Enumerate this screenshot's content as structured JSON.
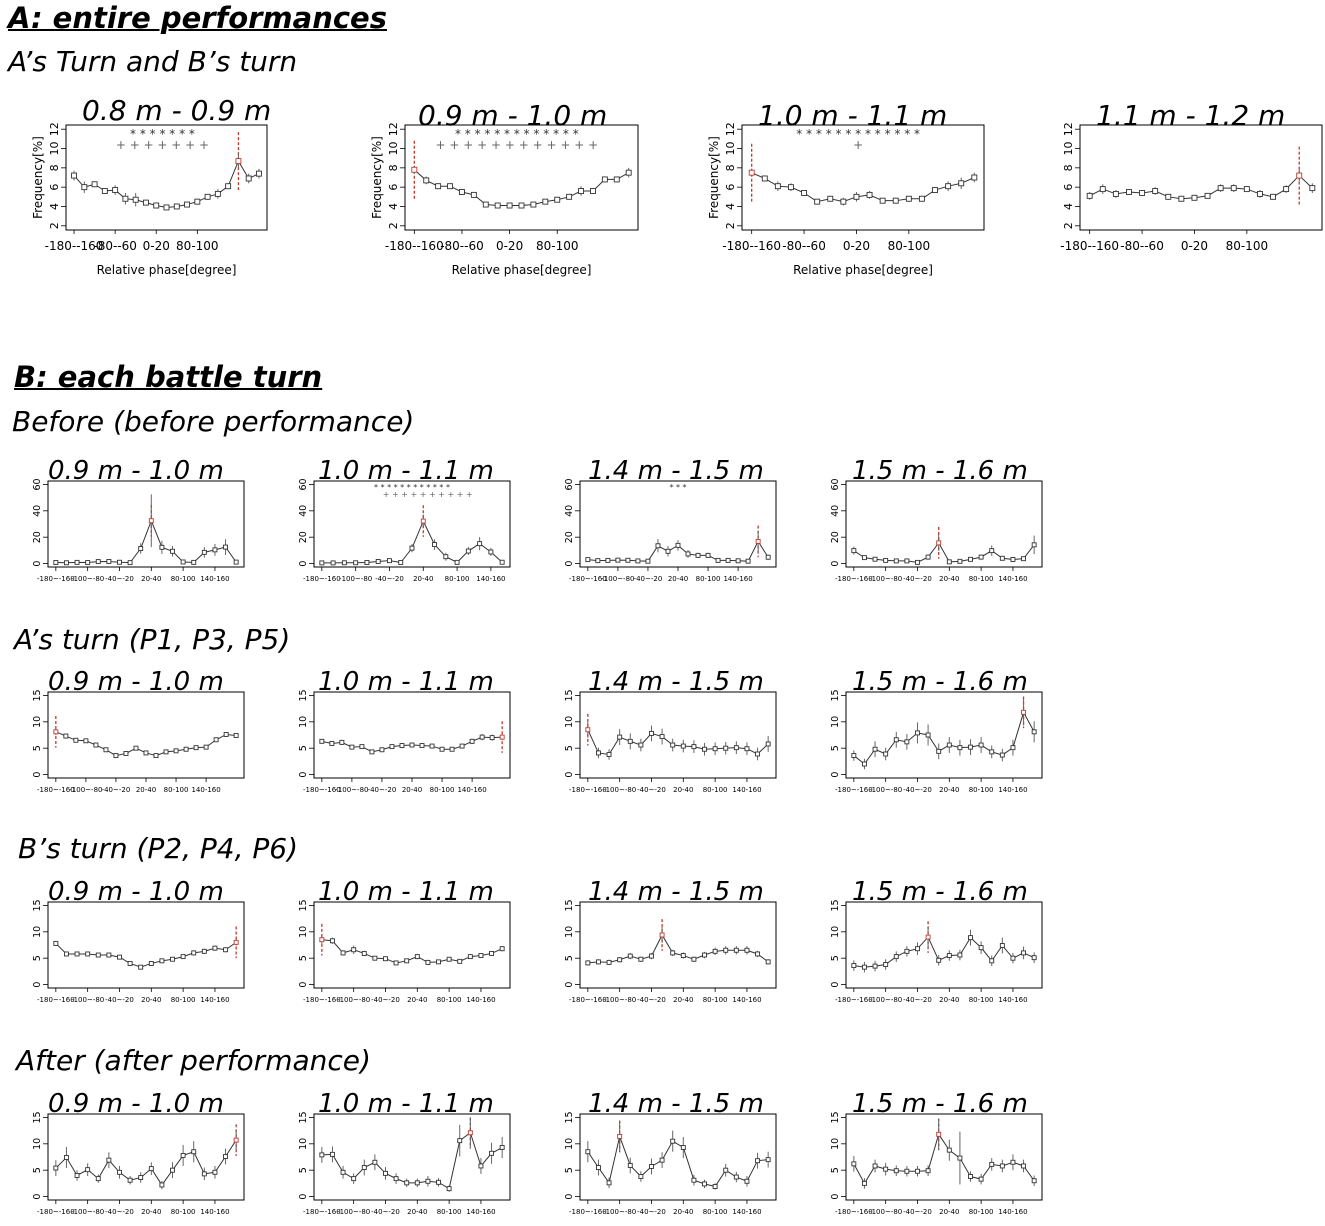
{
  "sections": {
    "a_title": "A: entire performances",
    "a_subtitle": "A’s Turn and B’s turn",
    "b_title": "B: each battle turn",
    "row_before": "Before (before performance)",
    "row_a_turn": "A’s turn (P1, P3, P5)",
    "row_b_turn": "B’s turn (P2, P4, P6)",
    "row_after": "After (after performance)"
  },
  "chart_data": [
    {
      "id": "A1",
      "type": "line",
      "title": "0.8 m - 0.9 m",
      "xlabel": "Relative phase[degree]",
      "ylabel": "Frequency[%]",
      "ylim": [
        2,
        12
      ],
      "yticks": [
        "2",
        "4",
        "6",
        "8",
        "10",
        "12"
      ],
      "xticks": [
        "-180--160",
        "-80--60",
        "0-20",
        "80-100"
      ],
      "values": [
        7.2,
        6.0,
        6.3,
        5.6,
        5.7,
        4.8,
        4.7,
        4.4,
        4.1,
        3.9,
        4.0,
        4.2,
        4.5,
        5.0,
        5.3,
        6.1,
        8.7,
        6.9,
        7.4
      ],
      "errors": [
        0.5,
        0.6,
        0.3,
        0.3,
        0.5,
        0.6,
        0.7,
        0.3,
        0.3,
        0.2,
        0.2,
        0.2,
        0.3,
        0.3,
        0.5,
        0.2,
        0.8,
        0.5,
        0.5
      ],
      "peak_index": 16,
      "star_row": "*  *  *  *  *  *  *",
      "plus_row": "+  +  +  +  +  +  +"
    },
    {
      "id": "A2",
      "type": "line",
      "title": "0.9 m - 1.0 m",
      "xlabel": "Relative phase[degree]",
      "ylabel": "Frequency[%]",
      "ylim": [
        2,
        12
      ],
      "yticks": [
        "2",
        "4",
        "6",
        "8",
        "10",
        "12"
      ],
      "xticks": [
        "-180--160",
        "-80--60",
        "0-20",
        "80-100"
      ],
      "values": [
        7.8,
        6.7,
        6.1,
        6.1,
        5.5,
        5.2,
        4.2,
        4.1,
        4.1,
        4.1,
        4.2,
        4.5,
        4.7,
        5.0,
        5.6,
        5.6,
        6.8,
        6.8,
        7.5
      ],
      "errors": [
        0.4,
        0.4,
        0.3,
        0.3,
        0.3,
        0.3,
        0.2,
        0.2,
        0.2,
        0.2,
        0.2,
        0.2,
        0.2,
        0.3,
        0.5,
        0.3,
        0.3,
        0.3,
        0.5
      ],
      "peak_index": 0,
      "star_row": "*  *  *  *  *  *  *  *  *  *  *       *       *",
      "plus_row": "+  +  +  +  +  +  +  +  +  +  +       +"
    },
    {
      "id": "A3",
      "type": "line",
      "title": "1.0 m - 1.1 m",
      "xlabel": "Relative phase[degree]",
      "ylabel": "Frequency[%]",
      "ylim": [
        2,
        12
      ],
      "yticks": [
        "2",
        "4",
        "6",
        "8",
        "10",
        "12"
      ],
      "xticks": [
        "-180--160",
        "-80--60",
        "0-20",
        "80-100"
      ],
      "values": [
        7.5,
        6.9,
        6.1,
        6.0,
        5.4,
        4.5,
        4.8,
        4.5,
        5.0,
        5.2,
        4.6,
        4.6,
        4.8,
        4.8,
        5.7,
        6.1,
        6.4,
        7.0
      ],
      "errors": [
        0.4,
        0.3,
        0.5,
        0.4,
        0.3,
        0.2,
        0.3,
        0.4,
        0.5,
        0.4,
        0.3,
        0.3,
        0.3,
        0.3,
        0.3,
        0.5,
        0.6,
        0.5
      ],
      "peak_index": 0,
      "star_row": "*  *  *  *  *  *  *  *  *  *  *  *  *",
      "plus_row": "+"
    },
    {
      "id": "A4",
      "type": "line",
      "title": "1.1 m - 1.2 m",
      "xlabel": "",
      "ylabel": "",
      "ylim": [
        2,
        12
      ],
      "yticks": [
        "2",
        "4",
        "6",
        "8",
        "10",
        "12"
      ],
      "xticks": [
        "-180--160",
        "-80--60",
        "0-20",
        "80-100"
      ],
      "values": [
        5.1,
        5.8,
        5.3,
        5.5,
        5.4,
        5.6,
        5.0,
        4.8,
        4.9,
        5.1,
        5.9,
        5.9,
        5.8,
        5.3,
        5.0,
        5.8,
        7.2,
        5.9
      ],
      "errors": [
        0.4,
        0.5,
        0.4,
        0.3,
        0.3,
        0.4,
        0.3,
        0.3,
        0.3,
        0.3,
        0.4,
        0.4,
        0.3,
        0.4,
        0.3,
        0.4,
        0.6,
        0.5
      ],
      "peak_index": 16
    },
    {
      "id": "B1",
      "type": "line",
      "title": "0.9 m - 1.0 m",
      "ylim": [
        0,
        60
      ],
      "yticks": [
        "0",
        "20",
        "40",
        "60"
      ],
      "xticks": [
        "-180~-160",
        "-100~-80",
        "-40~-20",
        "20-40",
        "80-100",
        "140-160"
      ],
      "values": [
        0.8,
        0.6,
        0.9,
        0.8,
        1.5,
        1.6,
        1.0,
        0.7,
        11.4,
        32.5,
        12.3,
        9.3,
        1.2,
        0.9,
        8.5,
        10.4,
        12.5,
        1.1
      ],
      "errors": [
        0.5,
        0.5,
        0.5,
        0.5,
        0.7,
        0.7,
        0.6,
        0.5,
        4.0,
        20.0,
        5.0,
        4.0,
        0.6,
        0.6,
        4.0,
        4.5,
        6.0,
        0.7
      ],
      "peak_index": 9
    },
    {
      "id": "B2",
      "type": "line",
      "title": "1.0 m - 1.1 m",
      "ylim": [
        0,
        60
      ],
      "yticks": [
        "0",
        "20",
        "40",
        "60"
      ],
      "xticks": [
        "-180~-160",
        "-100~-80",
        "-40~-20",
        "20-40",
        "80-100",
        "140-160"
      ],
      "values": [
        0.5,
        0.5,
        0.6,
        0.6,
        0.8,
        1.6,
        2.2,
        0.8,
        11.7,
        32.2,
        14.4,
        5.2,
        0.9,
        9.5,
        15.1,
        8.8,
        1.0
      ],
      "errors": [
        0.4,
        0.4,
        0.4,
        0.4,
        0.5,
        0.6,
        0.8,
        0.5,
        3.0,
        5.0,
        4.0,
        3.0,
        0.6,
        3.0,
        5.0,
        3.0,
        0.5
      ],
      "peak_index": 9,
      "star_row": "*  *  *  *  *  *  *  *  *  *  *  *",
      "plus_row": "+  +  +  +  +  +  +  +  +  +"
    },
    {
      "id": "B3",
      "type": "line",
      "title": "1.4 m - 1.5 m",
      "ylim": [
        0,
        60
      ],
      "yticks": [
        "0",
        "20",
        "40",
        "60"
      ],
      "xticks": [
        "-180~-160",
        "-100~-80",
        "-40~-20",
        "20-40",
        "80-100",
        "140-160"
      ],
      "values": [
        3.0,
        2.2,
        2.4,
        2.6,
        2.5,
        2.0,
        1.8,
        13.5,
        9.3,
        13.8,
        7.3,
        6.2,
        6.2,
        2.4,
        2.4,
        2.1,
        1.8,
        16.8,
        4.8
      ],
      "errors": [
        1.0,
        0.8,
        0.8,
        0.8,
        0.8,
        0.8,
        0.8,
        5.0,
        4.0,
        4.0,
        3.0,
        2.0,
        2.0,
        1.0,
        1.0,
        1.0,
        1.0,
        8.0,
        2.0
      ],
      "peak_index": 17,
      "star_row": "*   *        *"
    },
    {
      "id": "B4",
      "type": "line",
      "title": "1.5 m - 1.6 m",
      "ylim": [
        0,
        60
      ],
      "yticks": [
        "0",
        "20",
        "40",
        "60"
      ],
      "xticks": [
        "-180~-160",
        "-100~-80",
        "-40~-20",
        "20-40",
        "80-100",
        "140-160"
      ],
      "values": [
        9.8,
        4.5,
        3.3,
        2.4,
        2.0,
        2.0,
        0.9,
        4.9,
        15.7,
        1.3,
        1.7,
        3.2,
        4.9,
        9.8,
        4.0,
        3.1,
        3.7,
        14.2
      ],
      "errors": [
        3.0,
        1.5,
        1.0,
        1.0,
        1.0,
        1.0,
        0.6,
        2.0,
        6.0,
        0.8,
        0.8,
        1.5,
        2.0,
        4.0,
        1.5,
        1.5,
        1.5,
        7.0
      ],
      "peak_index": 8
    },
    {
      "id": "C1",
      "type": "line",
      "title": "0.9 m - 1.0 m",
      "ylim": [
        0,
        15
      ],
      "yticks": [
        "0",
        "5",
        "10",
        "15"
      ],
      "xticks": [
        "-180~-160",
        "-100~-80",
        "-40~-20",
        "20-40",
        "80-100",
        "140-160"
      ],
      "values": [
        8.1,
        7.3,
        6.5,
        6.4,
        5.6,
        4.7,
        3.6,
        4.0,
        5.0,
        4.1,
        3.6,
        4.3,
        4.5,
        4.8,
        5.1,
        5.2,
        6.6,
        7.6,
        7.4
      ],
      "errors": [
        0.6,
        0.5,
        0.4,
        0.4,
        0.3,
        0.3,
        0.3,
        0.3,
        0.3,
        0.3,
        0.3,
        0.3,
        0.3,
        0.3,
        0.3,
        0.3,
        0.4,
        0.4,
        0.4
      ],
      "peak_index": 0
    },
    {
      "id": "C2",
      "type": "line",
      "title": "1.0 m - 1.1 m",
      "ylim": [
        0,
        15
      ],
      "yticks": [
        "0",
        "5",
        "10",
        "15"
      ],
      "xticks": [
        "-180~-160",
        "-100~-80",
        "-40~-20",
        "20-40",
        "80-100",
        "140-160"
      ],
      "values": [
        6.3,
        5.9,
        6.1,
        5.2,
        5.3,
        4.3,
        4.7,
        5.3,
        5.5,
        5.6,
        5.5,
        5.4,
        4.8,
        4.8,
        5.4,
        6.3,
        7.1,
        7.0,
        7.1
      ],
      "errors": [
        0.4,
        0.4,
        0.5,
        0.4,
        0.4,
        0.3,
        0.4,
        0.4,
        0.5,
        0.4,
        0.4,
        0.4,
        0.4,
        0.3,
        0.4,
        0.5,
        0.6,
        0.6,
        0.6
      ],
      "peak_index": 18
    },
    {
      "id": "C3",
      "type": "line",
      "title": "1.4 m - 1.5 m",
      "ylim": [
        0,
        15
      ],
      "yticks": [
        "0",
        "5",
        "10",
        "15"
      ],
      "xticks": [
        "-180~-160",
        "-100~-80",
        "-40~-20",
        "20-40",
        "80-100",
        "140-160"
      ],
      "values": [
        8.5,
        4.1,
        3.8,
        7.1,
        6.3,
        5.6,
        7.8,
        7.2,
        5.6,
        5.4,
        5.3,
        4.8,
        4.9,
        5.0,
        5.1,
        4.9,
        3.9,
        5.8
      ],
      "errors": [
        1.5,
        1.0,
        1.0,
        1.5,
        1.5,
        1.2,
        1.5,
        1.5,
        1.2,
        1.2,
        1.2,
        1.2,
        1.2,
        1.2,
        1.2,
        1.2,
        1.2,
        1.5
      ],
      "peak_index": 0
    },
    {
      "id": "C4",
      "type": "line",
      "title": "1.5 m - 1.6 m",
      "ylim": [
        0,
        15
      ],
      "yticks": [
        "0",
        "5",
        "10",
        "15"
      ],
      "xticks": [
        "-180~-160",
        "-100~-80",
        "-40~-20",
        "20-40",
        "80-100",
        "140-160"
      ],
      "values": [
        3.6,
        2.0,
        4.8,
        3.9,
        6.6,
        6.2,
        7.9,
        7.5,
        4.4,
        5.6,
        5.1,
        5.2,
        5.6,
        4.3,
        3.7,
        5.1,
        11.8,
        8.1
      ],
      "errors": [
        1.0,
        1.0,
        1.5,
        1.2,
        1.5,
        1.5,
        2.0,
        2.0,
        1.5,
        1.5,
        1.5,
        1.5,
        1.5,
        1.2,
        1.2,
        1.5,
        2.5,
        2.0
      ],
      "peak_index": 16
    },
    {
      "id": "D1",
      "type": "line",
      "title": "0.9 m - 1.0 m",
      "ylim": [
        0,
        15
      ],
      "yticks": [
        "0",
        "5",
        "10",
        "15"
      ],
      "xticks": [
        "-180~-160",
        "-100~-80",
        "-40~-20",
        "20-40",
        "80-100",
        "140-160"
      ],
      "values": [
        7.8,
        5.8,
        5.8,
        5.8,
        5.6,
        5.6,
        5.2,
        4.0,
        3.3,
        4.0,
        4.5,
        4.8,
        5.3,
        6.0,
        6.3,
        6.9,
        6.6,
        8.0
      ],
      "errors": [
        0.5,
        0.4,
        0.4,
        0.4,
        0.4,
        0.4,
        0.4,
        0.3,
        0.3,
        0.3,
        0.3,
        0.3,
        0.4,
        0.5,
        0.5,
        0.5,
        0.5,
        0.6
      ],
      "peak_index": 17
    },
    {
      "id": "D2",
      "type": "line",
      "title": "1.0 m - 1.1 m",
      "ylim": [
        0,
        15
      ],
      "yticks": [
        "0",
        "5",
        "10",
        "15"
      ],
      "xticks": [
        "-180~-160",
        "-100~-80",
        "-40~-20",
        "20-40",
        "80-100",
        "140-160"
      ],
      "values": [
        8.5,
        8.3,
        6.0,
        6.6,
        5.9,
        5.0,
        4.9,
        4.1,
        4.5,
        5.3,
        4.2,
        4.3,
        4.8,
        4.4,
        5.3,
        5.5,
        5.9,
        6.8
      ],
      "errors": [
        0.8,
        0.6,
        0.5,
        0.8,
        0.5,
        0.4,
        0.4,
        0.3,
        0.4,
        0.5,
        0.5,
        0.4,
        0.4,
        0.4,
        0.4,
        0.4,
        0.4,
        0.5
      ],
      "peak_index": 0
    },
    {
      "id": "D3",
      "type": "line",
      "title": "1.4 m - 1.5 m",
      "ylim": [
        0,
        15
      ],
      "yticks": [
        "0",
        "5",
        "10",
        "15"
      ],
      "xticks": [
        "-180~-160",
        "-100~-80",
        "-40~-20",
        "20-40",
        "80-100",
        "140-160"
      ],
      "values": [
        4.1,
        4.3,
        4.2,
        4.7,
        5.4,
        4.8,
        5.4,
        9.4,
        6.0,
        5.5,
        4.8,
        5.6,
        6.3,
        6.5,
        6.5,
        6.5,
        5.8,
        4.3
      ],
      "errors": [
        0.5,
        0.5,
        0.5,
        0.5,
        0.6,
        0.5,
        0.6,
        1.5,
        0.6,
        0.6,
        0.5,
        0.6,
        0.7,
        0.8,
        0.8,
        0.8,
        0.6,
        0.5
      ],
      "peak_index": 7
    },
    {
      "id": "D4",
      "type": "line",
      "title": "1.5 m - 1.6 m",
      "ylim": [
        0,
        15
      ],
      "yticks": [
        "0",
        "5",
        "10",
        "15"
      ],
      "xticks": [
        "-180~-160",
        "-100~-80",
        "-40~-20",
        "20-40",
        "80-100",
        "140-160"
      ],
      "values": [
        3.6,
        3.3,
        3.5,
        3.8,
        5.3,
        6.3,
        6.8,
        9.0,
        4.6,
        5.5,
        5.6,
        8.9,
        7.0,
        4.5,
        7.4,
        5.0,
        6.0,
        5.1
      ],
      "errors": [
        1.0,
        1.0,
        1.0,
        1.0,
        1.0,
        1.0,
        1.2,
        2.0,
        1.0,
        1.0,
        1.0,
        1.5,
        1.2,
        1.0,
        1.5,
        1.0,
        1.2,
        1.0
      ],
      "peak_index": 7
    },
    {
      "id": "E1",
      "type": "line",
      "title": "0.9 m - 1.0 m",
      "ylim": [
        0,
        15
      ],
      "yticks": [
        "0",
        "5",
        "10",
        "15"
      ],
      "xticks": [
        "-180~-160",
        "-100~-80",
        "-40~-20",
        "20-40",
        "80-100",
        "140-160"
      ],
      "values": [
        5.4,
        7.4,
        4.0,
        5.1,
        3.4,
        6.9,
        4.6,
        3.1,
        3.6,
        5.3,
        2.2,
        5.0,
        7.8,
        8.5,
        4.3,
        4.6,
        7.6,
        10.7
      ],
      "errors": [
        1.5,
        2.0,
        1.0,
        1.2,
        0.8,
        1.5,
        1.2,
        0.8,
        1.0,
        1.2,
        0.8,
        1.5,
        2.0,
        2.0,
        1.2,
        1.2,
        1.5,
        2.0
      ],
      "peak_index": 17
    },
    {
      "id": "E2",
      "type": "line",
      "title": "1.0 m - 1.1 m",
      "ylim": [
        0,
        15
      ],
      "yticks": [
        "0",
        "5",
        "10",
        "15"
      ],
      "xticks": [
        "-180~-160",
        "-100~-80",
        "-40~-20",
        "20-40",
        "80-100",
        "140-160"
      ],
      "values": [
        7.9,
        8.0,
        4.6,
        3.4,
        5.5,
        6.5,
        4.4,
        3.4,
        2.6,
        2.6,
        2.9,
        2.7,
        1.5,
        10.6,
        12.1,
        5.8,
        8.2,
        9.3
      ],
      "errors": [
        1.5,
        1.5,
        1.2,
        1.0,
        1.5,
        1.5,
        1.2,
        1.0,
        0.8,
        0.8,
        1.0,
        0.8,
        0.6,
        3.0,
        3.0,
        1.5,
        2.0,
        2.0
      ],
      "peak_index": 14
    },
    {
      "id": "E3",
      "type": "line",
      "title": "1.4 m - 1.5 m",
      "ylim": [
        0,
        15
      ],
      "yticks": [
        "0",
        "5",
        "10",
        "15"
      ],
      "xticks": [
        "-180~-160",
        "-100~-80",
        "-40~-20",
        "20-40",
        "80-100",
        "140-160"
      ],
      "values": [
        8.5,
        5.5,
        2.6,
        11.4,
        5.9,
        3.8,
        5.7,
        6.9,
        10.5,
        9.3,
        3.1,
        2.4,
        1.9,
        5.0,
        3.7,
        2.9,
        6.8,
        7.0
      ],
      "errors": [
        2.0,
        1.5,
        1.0,
        3.0,
        1.5,
        1.0,
        1.5,
        1.5,
        2.0,
        2.0,
        1.0,
        0.8,
        0.6,
        1.2,
        1.0,
        1.0,
        1.5,
        1.5
      ],
      "peak_index": 3
    },
    {
      "id": "E4",
      "type": "line",
      "title": "1.5 m - 1.6 m",
      "ylim": [
        0,
        15
      ],
      "yticks": [
        "0",
        "5",
        "10",
        "15"
      ],
      "xticks": [
        "-180~-160",
        "-100~-80",
        "-40~-20",
        "20-40",
        "80-100",
        "140-160"
      ],
      "values": [
        6.2,
        2.5,
        5.8,
        5.2,
        4.9,
        4.8,
        4.8,
        4.9,
        11.8,
        8.8,
        7.3,
        3.8,
        3.3,
        6.1,
        5.8,
        6.5,
        5.8,
        3.0
      ],
      "errors": [
        1.5,
        1.0,
        1.2,
        1.2,
        1.0,
        1.0,
        1.0,
        1.0,
        3.0,
        2.0,
        5.0,
        1.0,
        1.0,
        1.2,
        1.2,
        1.5,
        1.2,
        1.0
      ],
      "peak_index": 8
    }
  ]
}
